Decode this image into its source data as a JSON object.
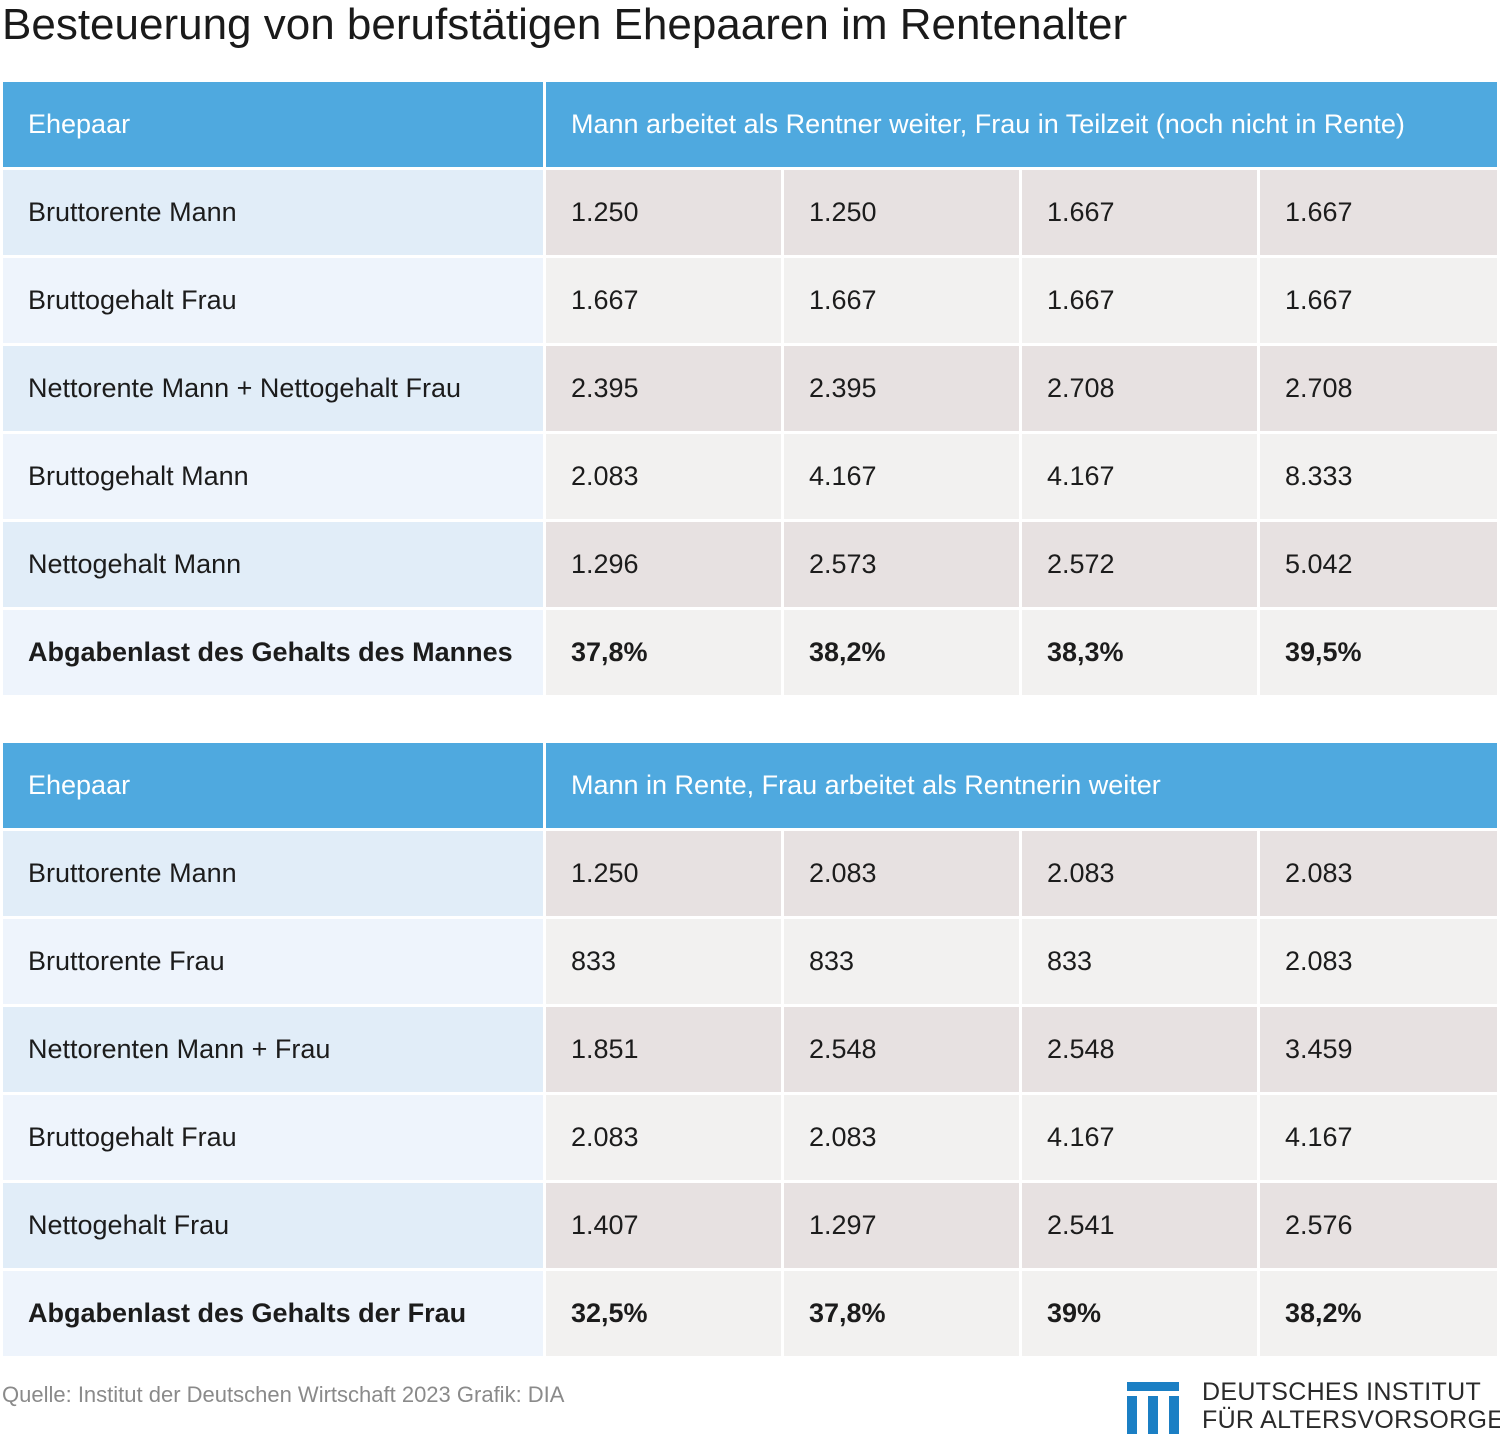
{
  "title": "Besteuerung von berufstätigen Ehepaaren im Rentenalter",
  "table1": {
    "header": [
      "Ehepaar",
      "Mann arbeitet als Rentner weiter, Frau in Teilzeit (noch nicht in Rente)"
    ],
    "rows": [
      {
        "label": "Bruttorente Mann",
        "values": [
          "1.250",
          "1.250",
          "1.667",
          "1.667"
        ]
      },
      {
        "label": "Bruttogehalt Frau",
        "values": [
          "1.667",
          "1.667",
          "1.667",
          "1.667"
        ]
      },
      {
        "label": "Nettorente Mann + Nettogehalt Frau",
        "values": [
          "2.395",
          "2.395",
          "2.708",
          "2.708"
        ]
      },
      {
        "label": "Bruttogehalt Mann",
        "values": [
          "2.083",
          "4.167",
          "4.167",
          "8.333"
        ]
      },
      {
        "label": "Nettogehalt Mann",
        "values": [
          "1.296",
          "2.573",
          "2.572",
          "5.042"
        ]
      },
      {
        "label": "Abgabenlast des Gehalts des Mannes",
        "values": [
          "37,8%",
          "38,2%",
          "38,3%",
          "39,5%"
        ]
      }
    ]
  },
  "table2": {
    "header": [
      "Ehepaar",
      "Mann in Rente, Frau arbeitet als Rentnerin weiter"
    ],
    "rows": [
      {
        "label": "Bruttorente Mann",
        "values": [
          "1.250",
          "2.083",
          "2.083",
          "2.083"
        ]
      },
      {
        "label": "Bruttorente Frau",
        "values": [
          "833",
          "833",
          "833",
          "2.083"
        ]
      },
      {
        "label": "Nettorenten Mann + Frau",
        "values": [
          "1.851",
          "2.548",
          "2.548",
          "3.459"
        ]
      },
      {
        "label": "Bruttogehalt Frau",
        "values": [
          "2.083",
          "2.083",
          "4.167",
          "4.167"
        ]
      },
      {
        "label": "Nettogehalt Frau",
        "values": [
          "1.407",
          "1.297",
          "2.541",
          "2.576"
        ]
      },
      {
        "label": "Abgabenlast des Gehalts der Frau",
        "values": [
          "32,5%",
          "37,8%",
          "39%",
          "38,2%"
        ]
      }
    ]
  },
  "footer": {
    "source": "Quelle: Institut der Deutschen Wirtschaft 2023  Grafik: DIA",
    "logo_line1": "DEUTSCHES INSTITUT",
    "logo_line2": "FÜR ALTERSVORSORGE"
  },
  "colors": {
    "header_blue": "#4fa9df",
    "logo_blue": "#1b7fc4"
  }
}
